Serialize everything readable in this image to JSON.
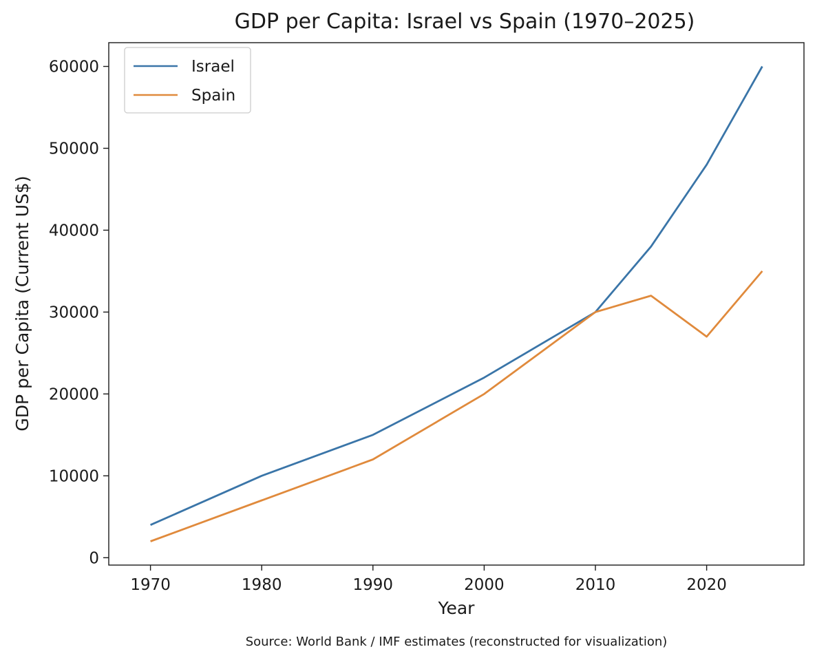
{
  "chart_data": {
    "type": "line",
    "title": "GDP per Capita: Israel vs Spain (1970–2025)",
    "xlabel": "Year",
    "ylabel": "GDP per Capita (Current US$)",
    "x": [
      1970,
      1980,
      1990,
      2000,
      2010,
      2015,
      2020,
      2025
    ],
    "series": [
      {
        "name": "Israel",
        "color": "#3a75a8",
        "values": [
          4000,
          10000,
          15000,
          22000,
          30000,
          38000,
          48000,
          60000
        ]
      },
      {
        "name": "Spain",
        "color": "#e08a3c",
        "values": [
          2000,
          7000,
          12000,
          20000,
          30000,
          32000,
          27000,
          35000
        ]
      }
    ],
    "xlim": [
      1966.25,
      2028.75
    ],
    "ylim": [
      -900,
      62900
    ],
    "xticks": [
      "1970",
      "1980",
      "1990",
      "2000",
      "2010",
      "2020"
    ],
    "yticks": [
      "0",
      "10000",
      "20000",
      "30000",
      "40000",
      "50000",
      "60000"
    ],
    "legend_position": "top-left",
    "grid": false
  },
  "footer": {
    "source": "Source: World Bank / IMF estimates (reconstructed for visualization)"
  }
}
